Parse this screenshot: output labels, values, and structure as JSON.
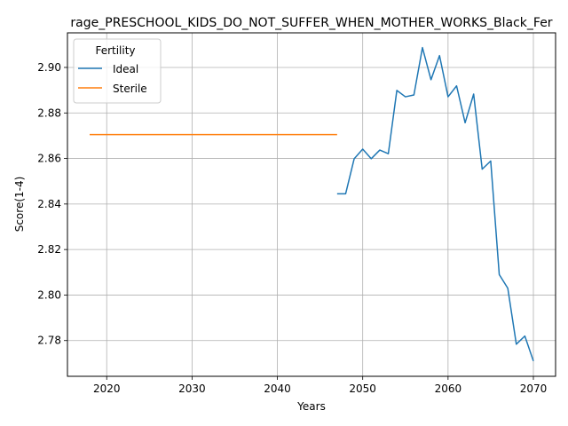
{
  "chart_data": {
    "type": "line",
    "title": "rage_PRESCHOOL_KIDS_DO_NOT_SUFFER_WHEN_MOTHER_WORKS_Black_Fer",
    "xlabel": "Years",
    "ylabel": "Score(1-4)",
    "xlim": [
      2015.4,
      2072.6
    ],
    "ylim": [
      2.7643,
      2.9152
    ],
    "xticks": [
      2020,
      2030,
      2040,
      2050,
      2060,
      2070
    ],
    "yticks": [
      2.78,
      2.8,
      2.82,
      2.84,
      2.86,
      2.88,
      2.9
    ],
    "xtick_labels": [
      "2020",
      "2030",
      "2040",
      "2050",
      "2060",
      "2070"
    ],
    "ytick_labels": [
      "2.78",
      "2.80",
      "2.82",
      "2.84",
      "2.86",
      "2.88",
      "2.90"
    ],
    "grid": true,
    "legend": {
      "title": "Fertility",
      "placement": "top-left"
    },
    "series": [
      {
        "name": "Ideal",
        "color": "#1f77b4",
        "x": [
          2047,
          2048,
          2049,
          2050,
          2051,
          2052,
          2053,
          2054,
          2055,
          2056,
          2057,
          2058,
          2059,
          2060,
          2061,
          2062,
          2063,
          2064,
          2065,
          2066,
          2067,
          2068,
          2069,
          2070
        ],
        "y": [
          2.8445,
          2.8445,
          2.8599,
          2.8641,
          2.8599,
          2.8637,
          2.8621,
          2.8899,
          2.8871,
          2.8879,
          2.9087,
          2.8946,
          2.9052,
          2.8871,
          2.8919,
          2.8757,
          2.8883,
          2.8553,
          2.8589,
          2.809,
          2.803,
          2.7784,
          2.782,
          2.771
        ]
      },
      {
        "name": "Sterile",
        "color": "#ff7f0e",
        "x": [
          2018,
          2047
        ],
        "y": [
          2.8705,
          2.8705
        ]
      }
    ]
  }
}
